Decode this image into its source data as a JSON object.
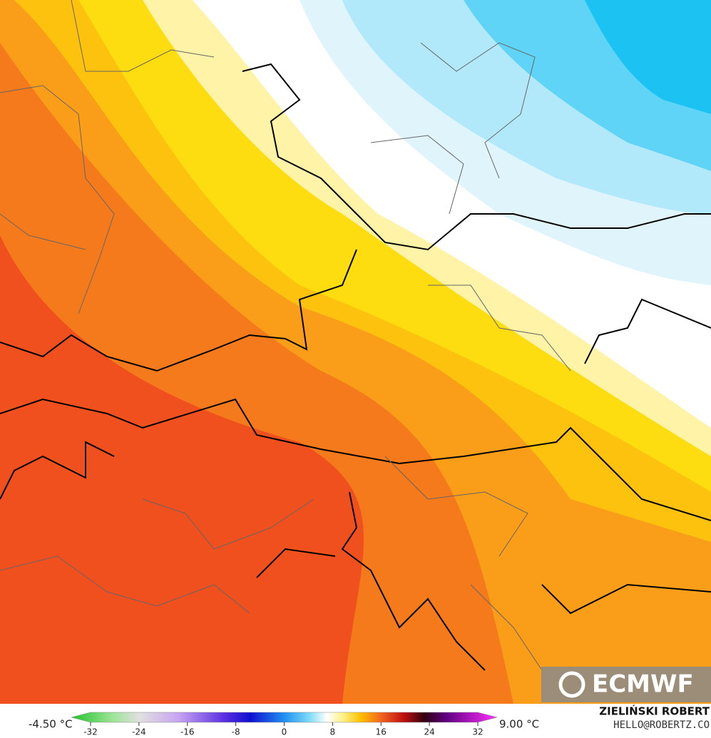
{
  "logo": "ECMWF",
  "footer": {
    "author": "ZIELIŃSKI ROBERT",
    "contact": "HELLO@ROBERTZ.CO"
  },
  "colorbar": {
    "min_label": "-4.50 °C",
    "max_label": "9.00 °C",
    "ticks": [
      -32,
      -24,
      -16,
      -8,
      0,
      8,
      16,
      24,
      32
    ]
  }
}
